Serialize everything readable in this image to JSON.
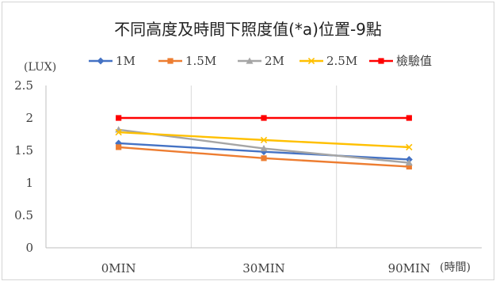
{
  "chart_data": {
    "type": "line",
    "title": "不同高度及時間下照度值(*a)位置-9點",
    "ylabel": "(LUX)",
    "xlabel": "(時間)",
    "categories": [
      "0MIN",
      "30MIN",
      "90MIN"
    ],
    "ylim": [
      0,
      2.5
    ],
    "yticks": [
      "0",
      "0.5",
      "1",
      "1.5",
      "2",
      "2.5"
    ],
    "grid": "vertical",
    "legend_position": "top",
    "series": [
      {
        "name": "1M",
        "values": [
          1.61,
          1.48,
          1.36
        ],
        "color": "#4472C4",
        "marker": "diamond"
      },
      {
        "name": "1.5M",
        "values": [
          1.55,
          1.38,
          1.25
        ],
        "color": "#ED7D31",
        "marker": "square"
      },
      {
        "name": "2M",
        "values": [
          1.82,
          1.53,
          1.31
        ],
        "color": "#A5A5A5",
        "marker": "triangle"
      },
      {
        "name": "2.5M",
        "values": [
          1.78,
          1.66,
          1.55
        ],
        "color": "#FFC000",
        "marker": "x"
      },
      {
        "name": "檢驗值",
        "values": [
          2.0,
          2.0,
          2.0
        ],
        "color": "#FF0000",
        "marker": "square"
      }
    ]
  }
}
